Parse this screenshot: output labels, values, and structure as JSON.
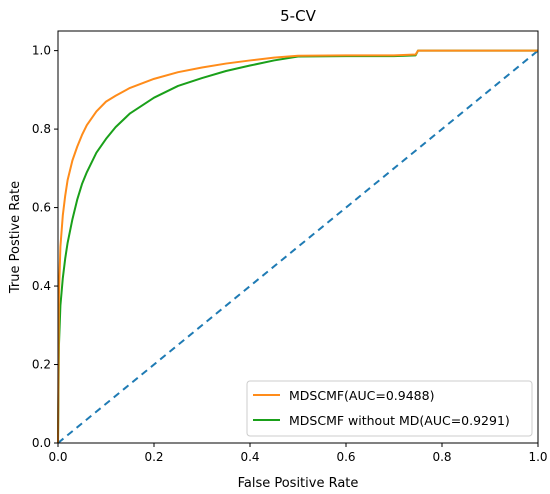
{
  "chart_data": {
    "type": "line",
    "title": "5-CV",
    "xlabel": "False Positive Rate",
    "ylabel": "True Postive Rate",
    "xlim": [
      0.0,
      1.0
    ],
    "ylim": [
      0.0,
      1.05
    ],
    "xticks": [
      "0.0",
      "0.2",
      "0.4",
      "0.6",
      "0.8",
      "1.0"
    ],
    "yticks": [
      "0.0",
      "0.2",
      "0.4",
      "0.6",
      "0.8",
      "1.0"
    ],
    "grid": false,
    "legend_position": "lower-right",
    "series": [
      {
        "name": "MDSCMF(AUC=0.9488)",
        "color": "#ff8c1a",
        "style": "solid",
        "x": [
          0.0,
          0.002,
          0.005,
          0.01,
          0.015,
          0.02,
          0.03,
          0.04,
          0.05,
          0.06,
          0.08,
          0.1,
          0.12,
          0.15,
          0.2,
          0.25,
          0.3,
          0.35,
          0.4,
          0.45,
          0.5,
          0.6,
          0.7,
          0.745,
          0.75,
          0.8,
          0.9,
          1.0
        ],
        "y": [
          0.0,
          0.38,
          0.5,
          0.58,
          0.63,
          0.67,
          0.72,
          0.755,
          0.785,
          0.81,
          0.845,
          0.87,
          0.885,
          0.905,
          0.928,
          0.945,
          0.957,
          0.967,
          0.975,
          0.982,
          0.987,
          0.988,
          0.988,
          0.99,
          1.0,
          1.0,
          1.0,
          1.0
        ]
      },
      {
        "name": "MDSCMF without MD(AUC=0.9291)",
        "color": "#1aa01a",
        "style": "solid",
        "x": [
          0.0,
          0.002,
          0.005,
          0.01,
          0.015,
          0.02,
          0.03,
          0.04,
          0.05,
          0.06,
          0.08,
          0.1,
          0.12,
          0.15,
          0.2,
          0.25,
          0.3,
          0.35,
          0.4,
          0.45,
          0.5,
          0.6,
          0.7,
          0.745,
          0.75,
          0.8,
          0.9,
          1.0
        ],
        "y": [
          0.0,
          0.25,
          0.35,
          0.42,
          0.47,
          0.51,
          0.57,
          0.62,
          0.66,
          0.69,
          0.74,
          0.775,
          0.805,
          0.84,
          0.88,
          0.91,
          0.93,
          0.948,
          0.962,
          0.975,
          0.985,
          0.986,
          0.986,
          0.988,
          1.0,
          1.0,
          1.0,
          1.0
        ]
      },
      {
        "name": "",
        "color": "#1f7bb4",
        "style": "dashed",
        "x": [
          0.0,
          1.0
        ],
        "y": [
          0.0,
          1.0
        ]
      }
    ]
  }
}
